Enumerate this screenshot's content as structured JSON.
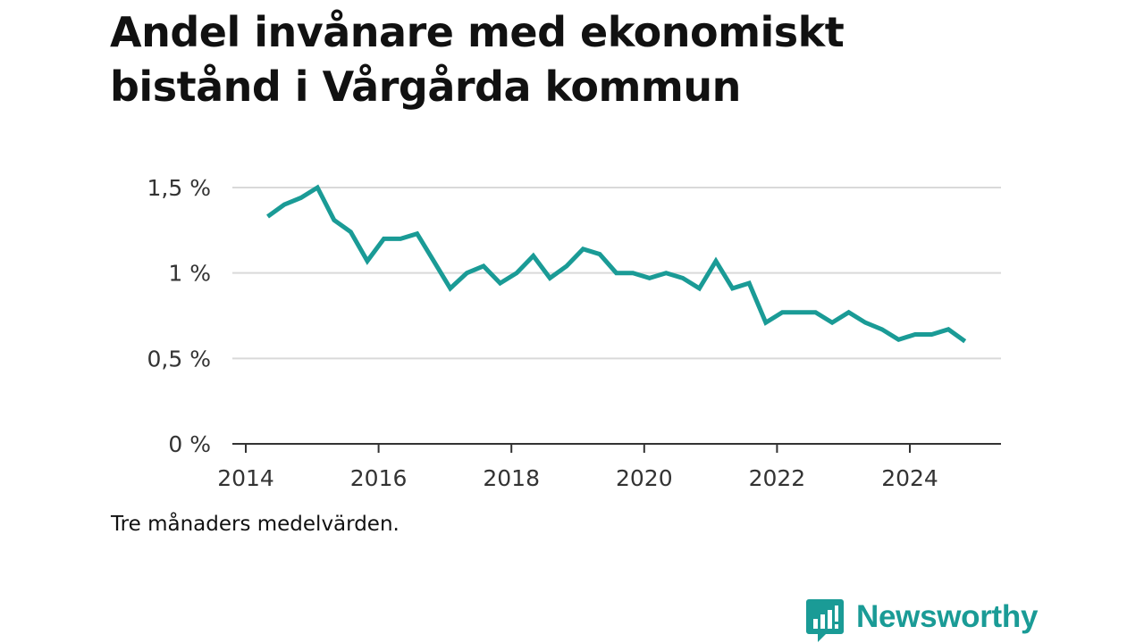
{
  "title": "Andel invånare med ekonomiskt bistånd i Vårgårda kommun",
  "note": "Tre månaders medelvärden.",
  "brand": {
    "name": "Newsworthy",
    "icon": "chat-bar-chart-icon",
    "color": "#1a9b96"
  },
  "chart_data": {
    "type": "line",
    "title": "Andel invånare med ekonomiskt bistånd i Vårgårda kommun",
    "xlabel": "",
    "ylabel": "",
    "ylim": [
      0,
      1.5
    ],
    "xlim": [
      2014,
      2025.5
    ],
    "yticks": [
      {
        "value": 0,
        "label": "0 %"
      },
      {
        "value": 0.5,
        "label": "0,5 %"
      },
      {
        "value": 1,
        "label": "1 %"
      },
      {
        "value": 1.5,
        "label": "1,5 %"
      }
    ],
    "xticks": [
      2014,
      2016,
      2018,
      2020,
      2022,
      2024
    ],
    "grid": true,
    "color": "#1a9b96",
    "series": [
      {
        "x": [
          2014.33,
          2014.58,
          2014.83,
          2015.08,
          2015.33,
          2015.58,
          2015.83,
          2016.08,
          2016.33,
          2016.58,
          2016.83,
          2017.08,
          2017.33,
          2017.58,
          2017.83,
          2018.08,
          2018.33,
          2018.58,
          2018.83,
          2019.08,
          2019.33,
          2019.58,
          2019.83,
          2020.08,
          2020.33,
          2020.58,
          2020.83,
          2021.08,
          2021.33,
          2021.58,
          2021.83,
          2022.08,
          2022.33,
          2022.58,
          2022.83,
          2023.08,
          2023.33,
          2023.58,
          2023.83,
          2024.08,
          2024.33,
          2024.58,
          2024.83
        ],
        "values": [
          1.33,
          1.4,
          1.44,
          1.5,
          1.31,
          1.24,
          1.07,
          1.2,
          1.2,
          1.23,
          1.07,
          0.91,
          1.0,
          1.04,
          0.94,
          1.0,
          1.1,
          0.97,
          1.04,
          1.14,
          1.11,
          1.0,
          1.0,
          0.97,
          1.0,
          0.97,
          0.91,
          1.07,
          0.91,
          0.94,
          0.71,
          0.77,
          0.77,
          0.77,
          0.71,
          0.77,
          0.71,
          0.67,
          0.61,
          0.64,
          0.64,
          0.67,
          0.6
        ]
      }
    ]
  }
}
